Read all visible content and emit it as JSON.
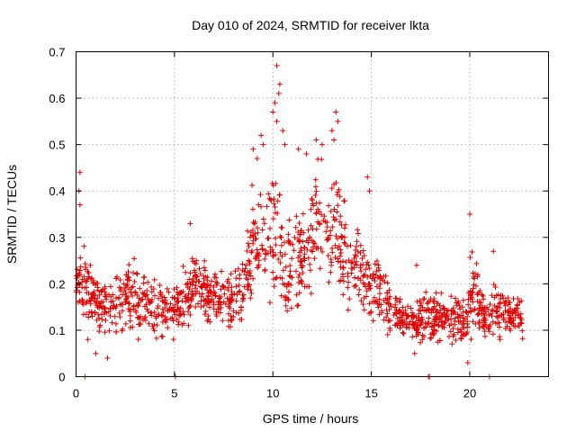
{
  "chart_data": {
    "type": "scatter",
    "title": "Day 010 of 2024, SRMTID for receiver lkta",
    "xlabel": "GPS time / hours",
    "ylabel": "SRMTID / TECUs",
    "xlim": [
      0,
      24
    ],
    "ylim": [
      0,
      0.7
    ],
    "xticks": [
      0,
      5,
      10,
      15,
      20
    ],
    "yticks": [
      0,
      0.1,
      0.2,
      0.3,
      0.4,
      0.5,
      0.6,
      0.7
    ],
    "xtick_labels": [
      "0",
      "5",
      "10",
      "15",
      "20"
    ],
    "ytick_labels": [
      "0",
      "0.1",
      "0.2",
      "0.3",
      "0.4",
      "0.5",
      "0.6",
      "0.7"
    ],
    "grid": true,
    "marker": "+",
    "color": "#e00000",
    "series": [
      {
        "name": "SRMTID",
        "envelope": {
          "x": [
            0,
            0.2,
            0.5,
            1,
            1.5,
            2,
            2.5,
            3,
            3.5,
            4,
            4.5,
            5,
            5.5,
            6,
            6.5,
            7,
            7.5,
            8,
            8.5,
            8.8,
            9,
            9.3,
            9.6,
            10,
            10.3,
            10.6,
            11,
            11.5,
            12,
            12.5,
            13,
            13.3,
            13.6,
            14,
            14.3,
            14.6,
            15,
            15.5,
            16,
            16.5,
            17,
            17.5,
            18,
            18.5,
            19,
            19.5,
            19.9,
            20.2,
            20.5,
            21,
            21.3,
            21.6,
            22,
            22.4,
            22.7
          ],
          "center": [
            0.17,
            0.21,
            0.2,
            0.16,
            0.15,
            0.15,
            0.18,
            0.17,
            0.16,
            0.15,
            0.14,
            0.14,
            0.17,
            0.2,
            0.18,
            0.17,
            0.16,
            0.16,
            0.18,
            0.25,
            0.32,
            0.3,
            0.27,
            0.34,
            0.3,
            0.22,
            0.24,
            0.27,
            0.32,
            0.34,
            0.3,
            0.34,
            0.27,
            0.22,
            0.26,
            0.22,
            0.2,
            0.18,
            0.13,
            0.13,
            0.12,
            0.12,
            0.13,
            0.13,
            0.13,
            0.12,
            0.13,
            0.2,
            0.14,
            0.12,
            0.16,
            0.15,
            0.13,
            0.13,
            0.12
          ],
          "spread": [
            0.06,
            0.1,
            0.08,
            0.07,
            0.07,
            0.07,
            0.08,
            0.08,
            0.07,
            0.07,
            0.06,
            0.06,
            0.07,
            0.07,
            0.06,
            0.06,
            0.06,
            0.06,
            0.07,
            0.11,
            0.12,
            0.13,
            0.12,
            0.15,
            0.18,
            0.12,
            0.12,
            0.12,
            0.13,
            0.13,
            0.13,
            0.14,
            0.12,
            0.1,
            0.1,
            0.09,
            0.08,
            0.07,
            0.05,
            0.05,
            0.05,
            0.06,
            0.06,
            0.06,
            0.06,
            0.06,
            0.07,
            0.11,
            0.06,
            0.05,
            0.08,
            0.06,
            0.05,
            0.05,
            0.05
          ]
        },
        "peaks": [
          {
            "x": 0.2,
            "y": 0.44
          },
          {
            "x": 0.15,
            "y": 0.4
          },
          {
            "x": 0.2,
            "y": 0.37
          },
          {
            "x": 5.8,
            "y": 0.33
          },
          {
            "x": 9.0,
            "y": 0.49
          },
          {
            "x": 9.2,
            "y": 0.47
          },
          {
            "x": 9.4,
            "y": 0.52
          },
          {
            "x": 9.5,
            "y": 0.5
          },
          {
            "x": 10.2,
            "y": 0.67
          },
          {
            "x": 10.35,
            "y": 0.63
          },
          {
            "x": 10.3,
            "y": 0.61
          },
          {
            "x": 10.1,
            "y": 0.59
          },
          {
            "x": 10.0,
            "y": 0.57
          },
          {
            "x": 10.2,
            "y": 0.55
          },
          {
            "x": 10.5,
            "y": 0.53
          },
          {
            "x": 10.6,
            "y": 0.5
          },
          {
            "x": 11.3,
            "y": 0.49
          },
          {
            "x": 11.7,
            "y": 0.48
          },
          {
            "x": 12.2,
            "y": 0.51
          },
          {
            "x": 12.5,
            "y": 0.5
          },
          {
            "x": 13.2,
            "y": 0.57
          },
          {
            "x": 13.3,
            "y": 0.55
          },
          {
            "x": 13.0,
            "y": 0.53
          },
          {
            "x": 13.1,
            "y": 0.51
          },
          {
            "x": 14.8,
            "y": 0.43
          },
          {
            "x": 14.9,
            "y": 0.4
          },
          {
            "x": 20.0,
            "y": 0.35
          },
          {
            "x": 21.2,
            "y": 0.27
          },
          {
            "x": 17.3,
            "y": 0.24
          },
          {
            "x": 0.6,
            "y": 0.08
          },
          {
            "x": 1.6,
            "y": 0.04
          },
          {
            "x": 1.0,
            "y": 0.05
          },
          {
            "x": 19.9,
            "y": 0.03
          },
          {
            "x": 17.2,
            "y": 0.05
          },
          {
            "x": 0.45,
            "y": 0.0
          },
          {
            "x": 5.05,
            "y": 0.0
          },
          {
            "x": 17.9,
            "y": 0.0
          },
          {
            "x": 17.95,
            "y": 0.0
          },
          {
            "x": 21.0,
            "y": 0.0
          }
        ]
      }
    ]
  }
}
